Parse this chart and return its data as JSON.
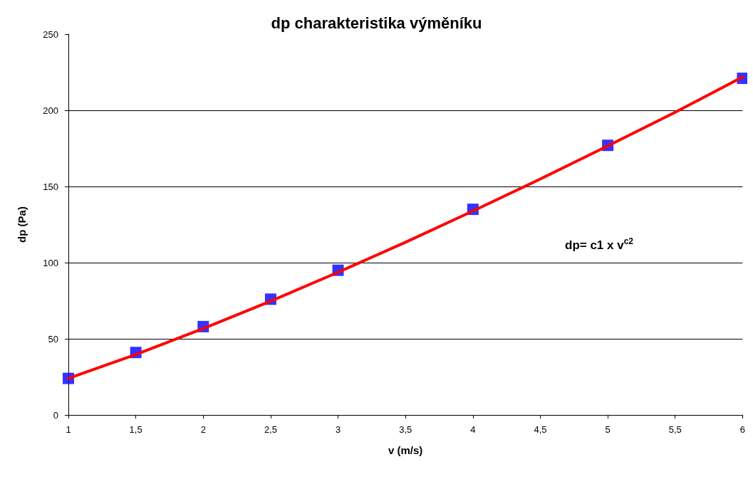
{
  "chart_data": {
    "type": "scatter",
    "title": "dp charakteristika výměníku",
    "xlabel": "v (m/s)",
    "ylabel": "dp (Pa)",
    "annotations": [
      "dp= c1 x v$^{c2}$"
    ],
    "series": [
      {
        "color": "#0000ff",
        "marker": "square",
        "x": [
          1,
          1.5,
          2,
          2.5,
          3,
          4,
          5,
          6
        ],
        "values": [
          24,
          41,
          58,
          76,
          95,
          135,
          177,
          221
        ]
      },
      {
        "type": "line",
        "color": "#ff0000",
        "marker": "none",
        "line_style": "solid",
        "x": [
          1,
          1.5,
          2,
          2.5,
          3,
          3.5,
          4,
          4.5,
          5,
          5.5,
          6
        ],
        "values": [
          24,
          39.7,
          56.7,
          74.7,
          93.7,
          113.4,
          133.9,
          154.9,
          176.6,
          198.7,
          221.9
        ]
      }
    ],
    "xlim": [
      1,
      6
    ],
    "xticks": [
      1,
      {
        "value": 1.5,
        "label": "1,5"
      },
      2,
      {
        "value": 2.5,
        "label": "2,5"
      },
      3,
      {
        "value": 3.5,
        "label": "3,5"
      },
      4,
      {
        "value": 4.5,
        "label": "4,5"
      },
      5,
      {
        "value": 5.5,
        "label": "5,5"
      },
      6
    ],
    "ylim": [
      0,
      250
    ],
    "yticks": [
      0,
      50,
      100,
      150,
      200,
      250
    ],
    "grid": "y"
  }
}
